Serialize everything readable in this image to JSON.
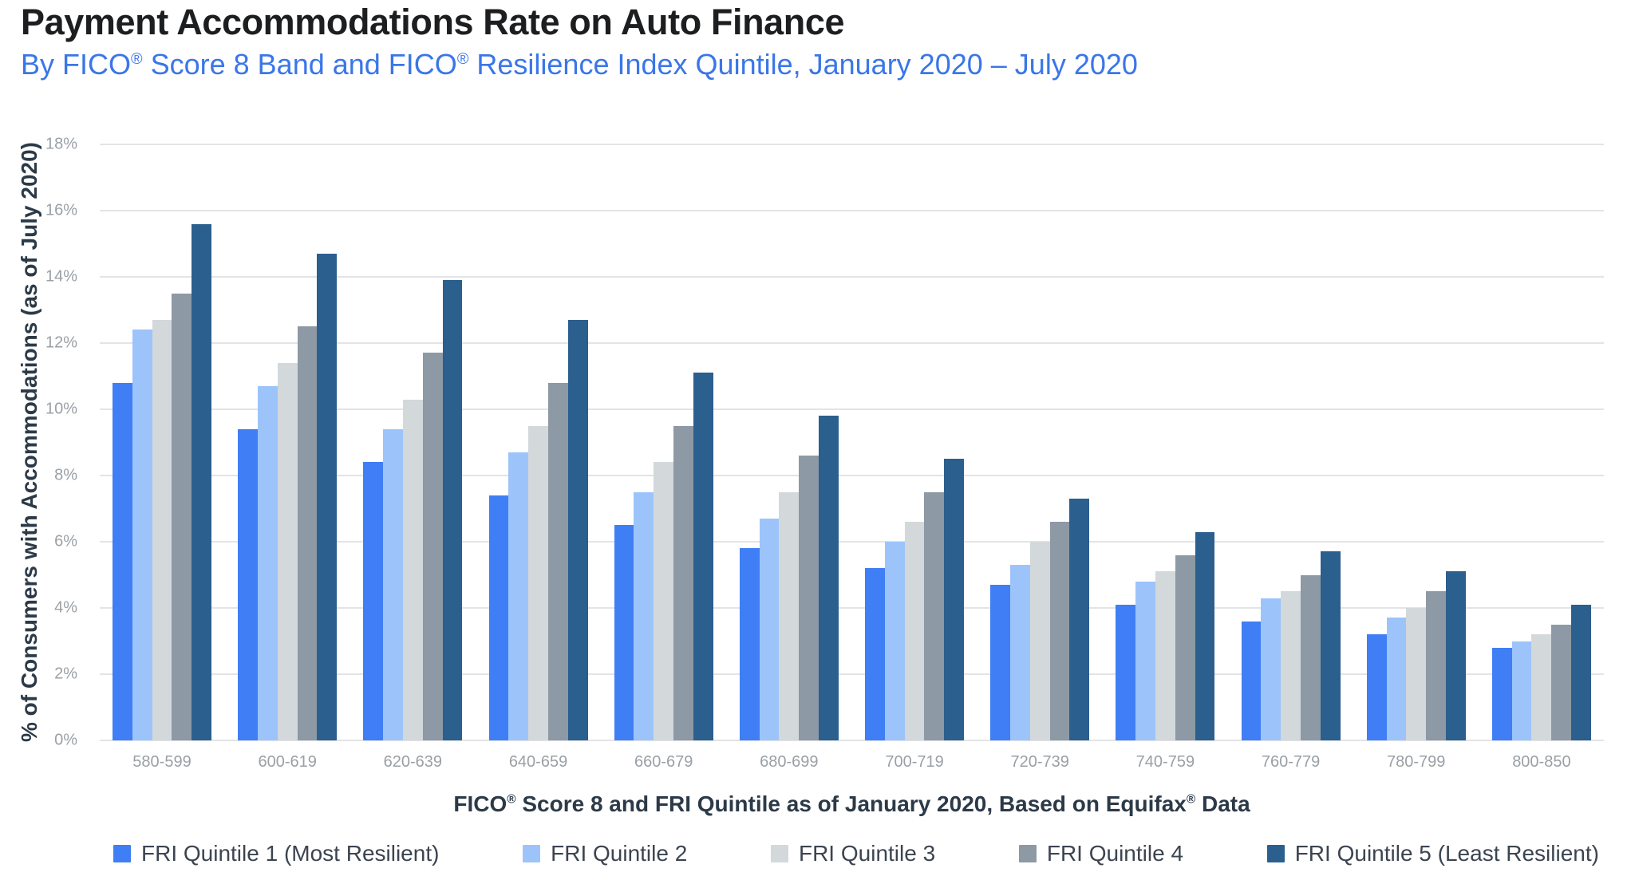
{
  "header": {
    "title": "Payment Accommodations Rate on Auto Finance",
    "subtitle": "By FICO® Score 8 Band and FICO® Resilience Index Quintile, January 2020 – July 2020"
  },
  "chart_data": {
    "type": "bar",
    "title": "Payment Accommodations Rate on Auto Finance",
    "subtitle": "By FICO® Score 8 Band and FICO® Resilience Index Quintile, January 2020 – July 2020",
    "xlabel": "FICO® Score 8 and FRI Quintile as of January 2020, Based on Equifax® Data",
    "ylabel": "% of Consumers with Accommodations (as of July 2020)",
    "ylim": [
      0,
      18
    ],
    "ytick_step": 2,
    "ytick_labels": [
      "0%",
      "2%",
      "4%",
      "6%",
      "8%",
      "10%",
      "12%",
      "14%",
      "16%",
      "18%"
    ],
    "grid": true,
    "legend_position": "bottom",
    "categories": [
      "580-599",
      "600-619",
      "620-639",
      "640-659",
      "660-679",
      "680-699",
      "700-719",
      "720-739",
      "740-759",
      "760-779",
      "780-799",
      "800-850"
    ],
    "series": [
      {
        "name": "FRI Quintile 1 (Most Resilient)",
        "color": "#3f7ef5",
        "values": [
          10.8,
          9.4,
          8.4,
          7.4,
          6.5,
          5.8,
          5.2,
          4.7,
          4.1,
          3.6,
          3.2,
          2.8
        ]
      },
      {
        "name": "FRI Quintile 2",
        "color": "#9cc4fa",
        "values": [
          12.4,
          10.7,
          9.4,
          8.7,
          7.5,
          6.7,
          6.0,
          5.3,
          4.8,
          4.3,
          3.7,
          3.0
        ]
      },
      {
        "name": "FRI Quintile 3",
        "color": "#d3d8db",
        "values": [
          12.7,
          11.4,
          10.3,
          9.5,
          8.4,
          7.5,
          6.6,
          6.0,
          5.1,
          4.5,
          4.0,
          3.2
        ]
      },
      {
        "name": "FRI Quintile 4",
        "color": "#8d99a4",
        "values": [
          13.5,
          12.5,
          11.7,
          10.8,
          9.5,
          8.6,
          7.5,
          6.6,
          5.6,
          5.0,
          4.5,
          3.5
        ]
      },
      {
        "name": "FRI Quintile 5 (Least Resilient)",
        "color": "#2b5f8e",
        "values": [
          15.6,
          14.7,
          13.9,
          12.7,
          11.1,
          9.8,
          8.5,
          7.3,
          6.3,
          5.7,
          5.1,
          4.1
        ]
      }
    ],
    "colors": {
      "title": "#1d1e20",
      "subtitle": "#3a76e8",
      "axis_title": "#2c3a48",
      "tick_text": "#9aa0a6",
      "legend_text": "#3c4450",
      "gridline": "#e2e4e7"
    }
  }
}
